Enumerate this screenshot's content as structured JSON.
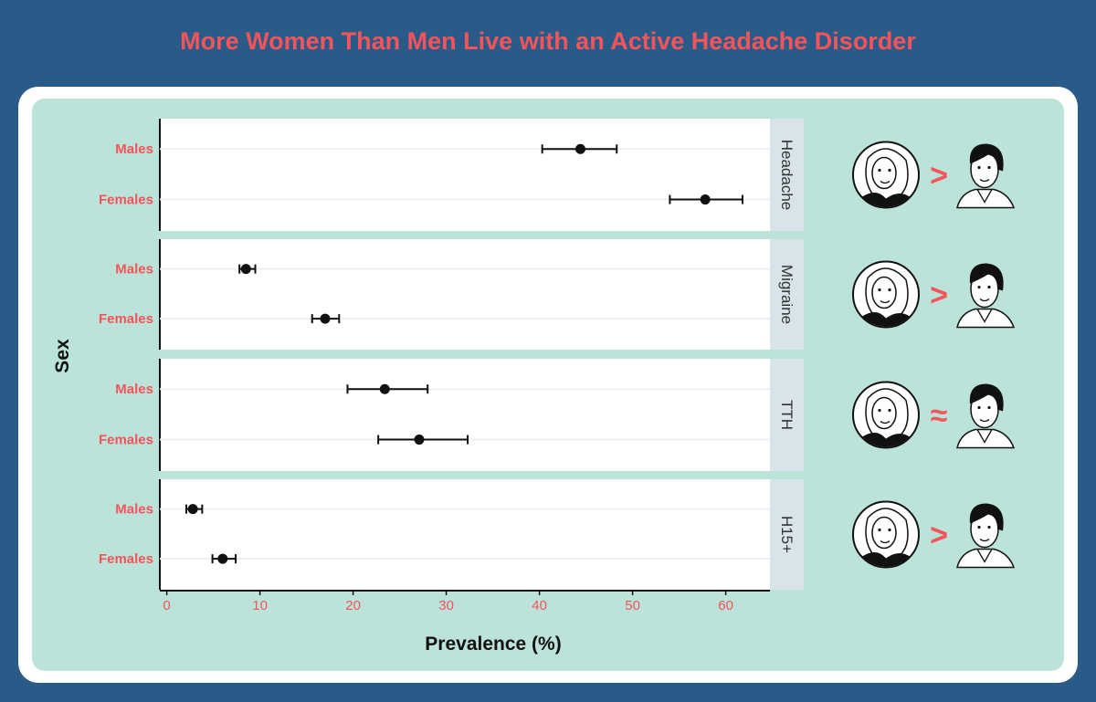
{
  "title": "More Women Than Men Live with an Active Headache Disorder",
  "colors": {
    "background": "#2a5b88",
    "panel": "#bce3d9",
    "accent": "#f4545a",
    "strip": "#d9e4ea"
  },
  "chart_data": {
    "type": "scatter",
    "subtype": "dot-with-error-bars, faceted",
    "title": "More Women Than Men Live with an Active Headache Disorder",
    "xlabel": "Prevalence (%)",
    "ylabel": "Sex",
    "xlim": [
      0,
      65
    ],
    "xticks": [
      0,
      10,
      20,
      30,
      40,
      50,
      60
    ],
    "categories": [
      "Males",
      "Females"
    ],
    "grid": "horizontal",
    "facets": [
      {
        "name": "Headache",
        "comparison": ">",
        "points": [
          {
            "sex": "Males",
            "value": 44.4,
            "lower": 40.3,
            "upper": 48.3
          },
          {
            "sex": "Females",
            "value": 57.8,
            "lower": 54.0,
            "upper": 61.8
          }
        ]
      },
      {
        "name": "Migraine",
        "comparison": ">",
        "points": [
          {
            "sex": "Males",
            "value": 8.5,
            "lower": 7.8,
            "upper": 9.5
          },
          {
            "sex": "Females",
            "value": 17.0,
            "lower": 15.6,
            "upper": 18.5
          }
        ]
      },
      {
        "name": "TTH",
        "comparison": "≈",
        "points": [
          {
            "sex": "Males",
            "value": 23.4,
            "lower": 19.4,
            "upper": 28.0
          },
          {
            "sex": "Females",
            "value": 27.1,
            "lower": 22.7,
            "upper": 32.3
          }
        ]
      },
      {
        "name": "H15+",
        "comparison": ">",
        "points": [
          {
            "sex": "Males",
            "value": 2.8,
            "lower": 2.1,
            "upper": 3.8
          },
          {
            "sex": "Females",
            "value": 6.0,
            "lower": 4.9,
            "upper": 7.4
          }
        ]
      }
    ]
  }
}
